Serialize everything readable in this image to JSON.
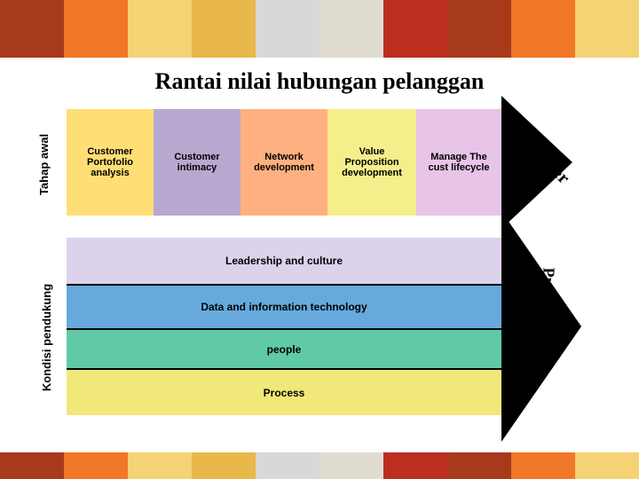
{
  "title": "Rantai nilai hubungan pelanggan",
  "topTiles": [
    "#a83a1c",
    "#f07828",
    "#f5d274",
    "#e8b84a",
    "#d8d8d8",
    "#e0dcd2",
    "#bc2e1e",
    "#a83a1c",
    "#f07828",
    "#f5d274"
  ],
  "bottomTiles": [
    "#a83a1c",
    "#f07828",
    "#f5d274",
    "#e8b84a",
    "#d8d8d8",
    "#e0dcd2",
    "#bc2e1e",
    "#a83a1c",
    "#f07828",
    "#f5d274"
  ],
  "leftLabels": {
    "top": "Tahap awal",
    "bottom": "Kondisi pendukung"
  },
  "upper": {
    "stages": [
      "Customer Portofolio analysis",
      "Customer intimacy",
      "Network development",
      "Value Proposition development",
      "Manage The cust lifecycle"
    ],
    "arrowLabel": "Customer",
    "stageColors": [
      "#ffde75",
      "#b8a8d0",
      "#ffb080",
      "#f5ee8a",
      "#e8c4e8"
    ]
  },
  "lower": {
    "layers": [
      "Leadership and culture",
      "Data and information technology",
      "people",
      "Process"
    ],
    "arrowLabel": "Profitability",
    "layerColors": [
      "#ddd2ec",
      "#66aadd",
      "#5fc9a8",
      "#f0e878"
    ]
  }
}
